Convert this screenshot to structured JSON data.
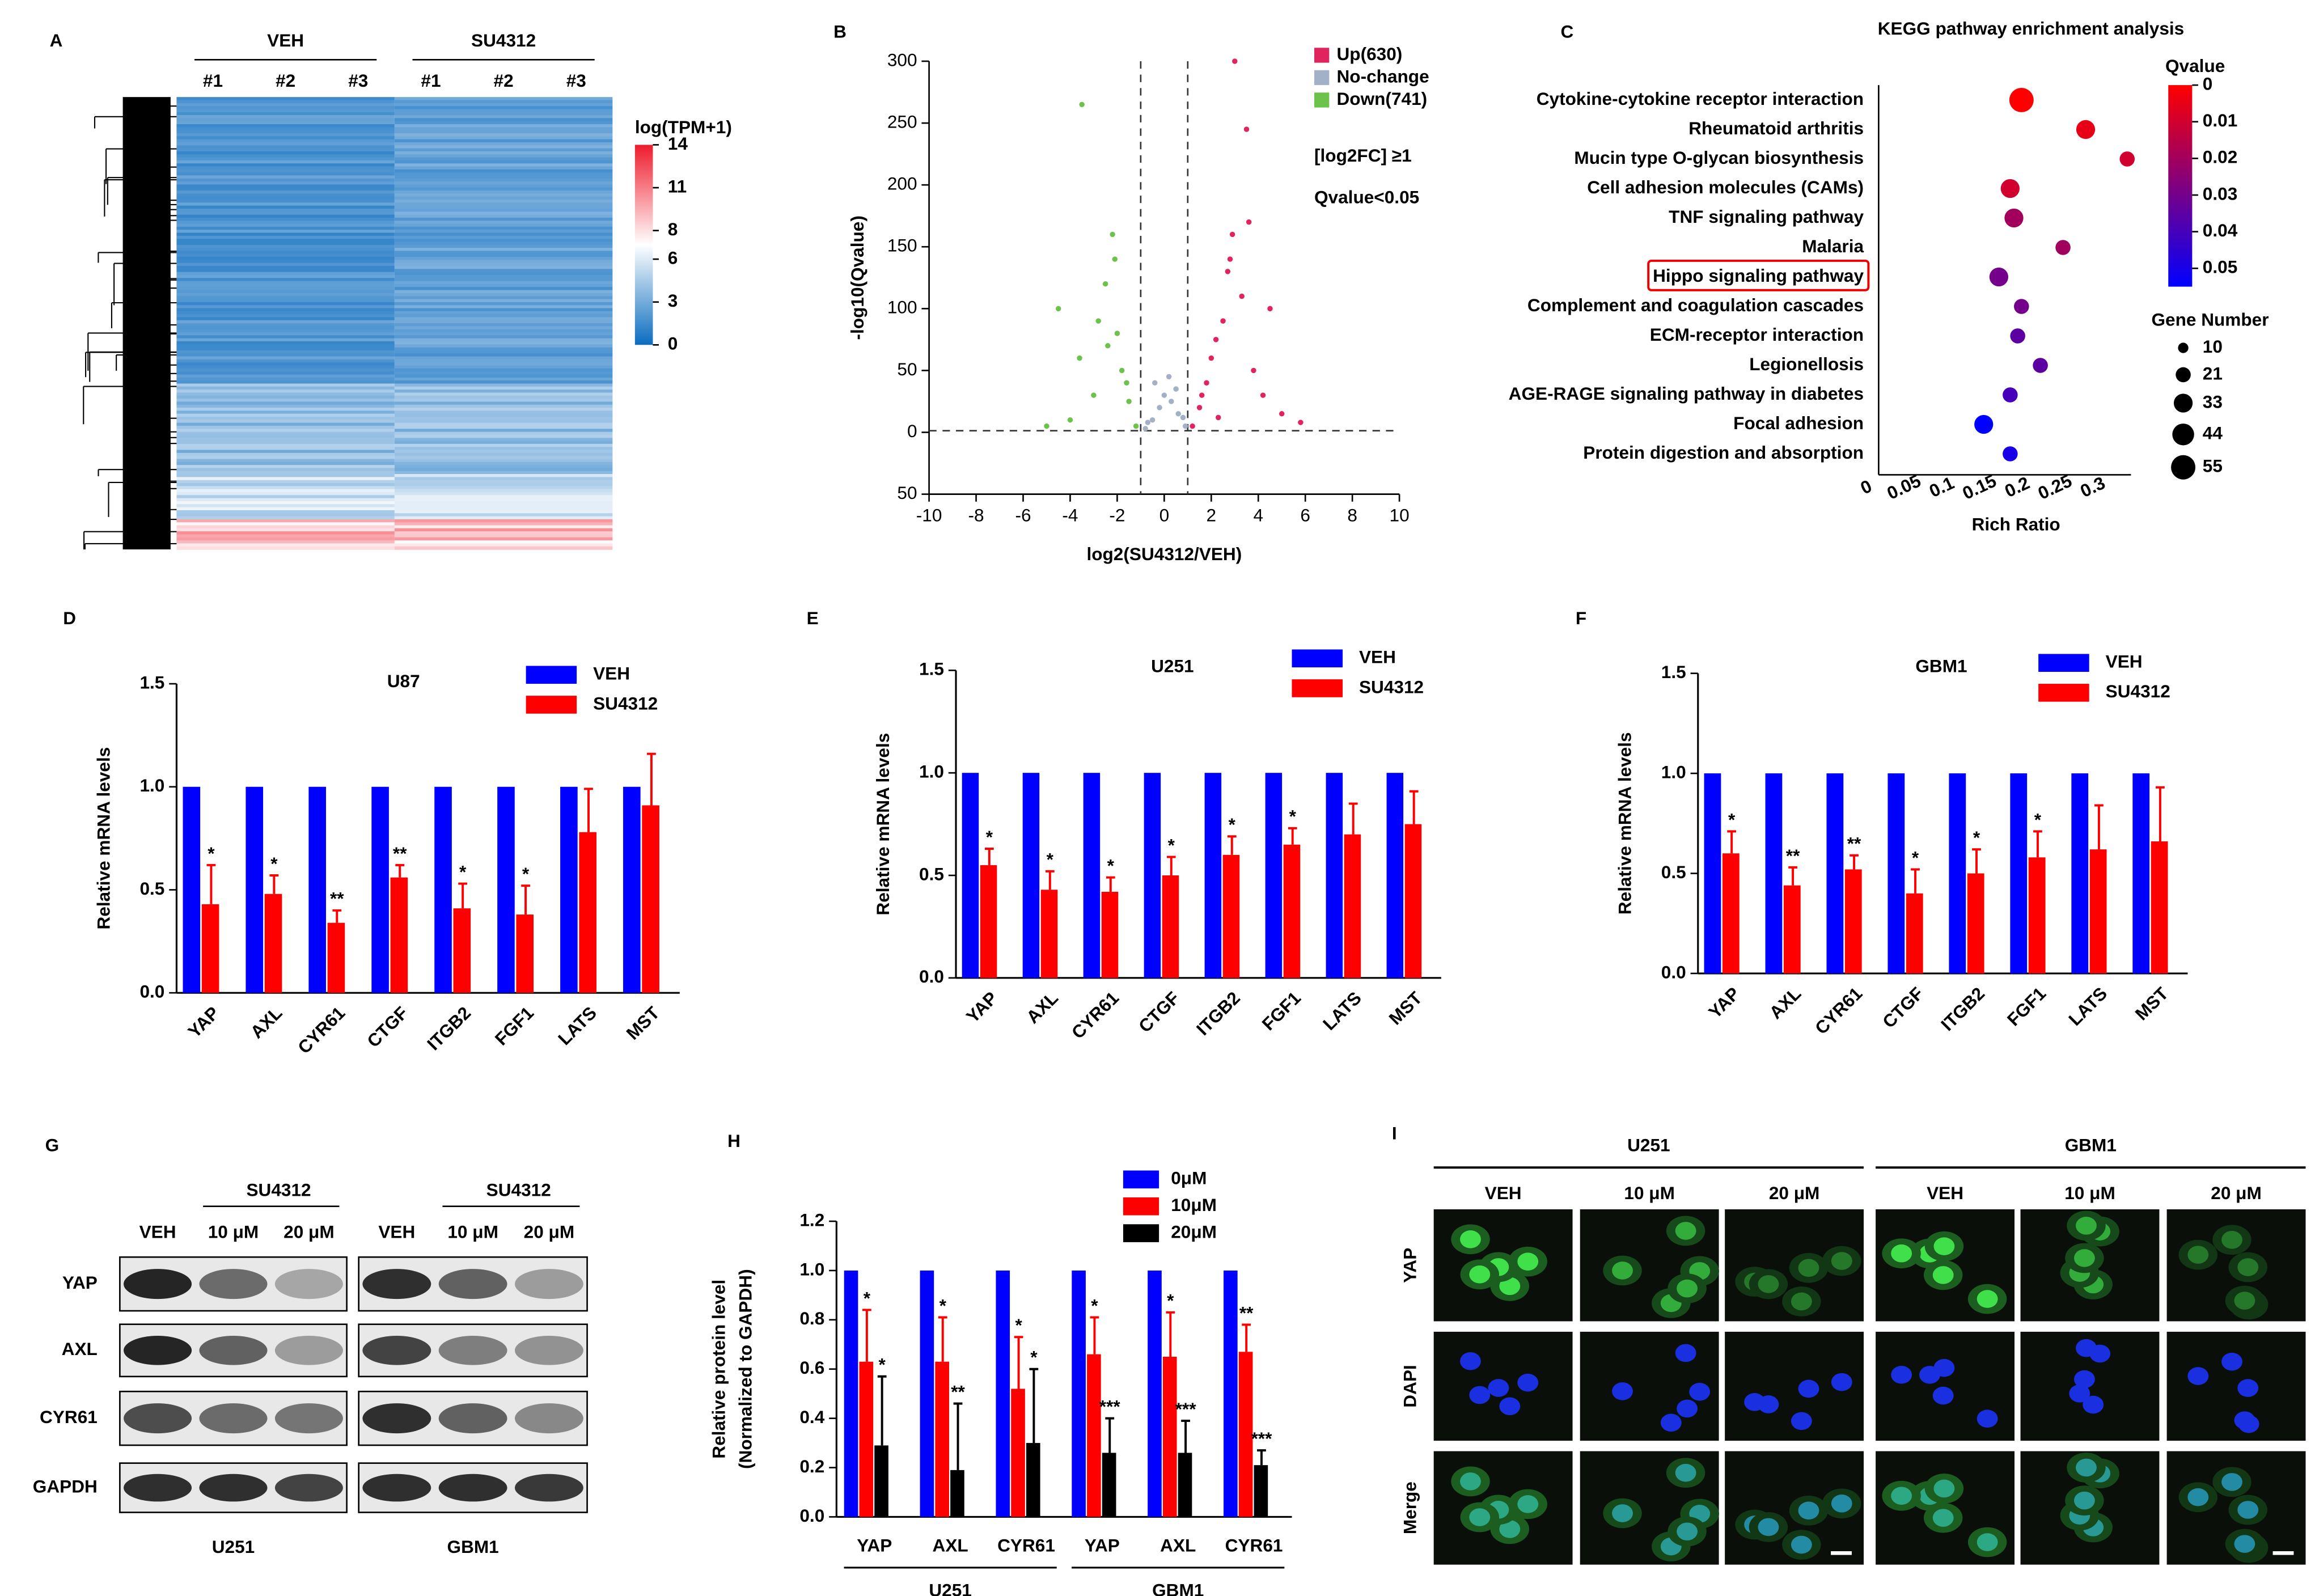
{
  "chart_data": [
    {
      "type": "heatmap",
      "panel": "A",
      "groups": [
        "VEH",
        "SU4312"
      ],
      "columns": [
        "#1",
        "#2",
        "#3",
        "#1",
        "#2",
        "#3"
      ],
      "colorbar_title": "log(TPM+1)",
      "clim": [
        0,
        14
      ],
      "colorbar_ticks": [
        0,
        3,
        6,
        8,
        11,
        14
      ],
      "colors": [
        "#0b6cbf",
        "#ffffff",
        "#ee1c2c"
      ]
    },
    {
      "type": "scatter",
      "panel": "B",
      "xlabel": "log2(SU4312/VEH)",
      "ylabel": "-log10(Qvalue)",
      "xlim": [
        -10,
        10
      ],
      "xticks": [
        -10,
        -8,
        -6,
        -4,
        -2,
        0,
        2,
        4,
        6,
        8,
        10
      ],
      "ylim": [
        -50,
        300
      ],
      "yticks": [
        {
          "value": -50,
          "label": "50"
        },
        0,
        50,
        100,
        150,
        200,
        250,
        300
      ],
      "x_cutoffs": [
        -1,
        1
      ],
      "y_cutoff": 1.3,
      "annotations": [
        "[log2FC] ≥1",
        "Qvalue<0.05"
      ],
      "series": [
        {
          "name": "Up(630)",
          "color": "#e0245e",
          "x": [
            1.2,
            1.5,
            1.8,
            2.0,
            2.3,
            2.5,
            2.8,
            3.0,
            3.3,
            3.5,
            3.8,
            4.2,
            4.5,
            5.0,
            5.8,
            2.9,
            3.6,
            1.6,
            2.2,
            2.7
          ],
          "values": [
            5,
            20,
            40,
            60,
            12,
            90,
            140,
            300,
            110,
            245,
            50,
            30,
            100,
            15,
            8,
            160,
            170,
            30,
            75,
            130
          ]
        },
        {
          "name": "No-change",
          "color": "#a3b1c6",
          "x": [
            -0.8,
            -0.5,
            -0.2,
            0,
            0.3,
            0.6,
            0.9,
            -0.4,
            0.2,
            0.5,
            -0.7,
            0.8
          ],
          "values": [
            3,
            10,
            20,
            30,
            25,
            15,
            5,
            40,
            45,
            35,
            8,
            12
          ]
        },
        {
          "name": "Down(741)",
          "color": "#6cc24a",
          "x": [
            -1.2,
            -1.5,
            -1.8,
            -2.0,
            -2.2,
            -2.5,
            -2.8,
            -3.0,
            -3.5,
            -3.6,
            -4.0,
            -4.5,
            -5.0,
            -2.1,
            -1.6,
            -2.4
          ],
          "values": [
            5,
            25,
            50,
            80,
            160,
            120,
            90,
            30,
            265,
            60,
            10,
            100,
            5,
            140,
            40,
            70
          ]
        }
      ]
    },
    {
      "type": "bubble",
      "panel": "C",
      "title": "KEGG pathway enrichment analysis",
      "xlabel": "Rich Ratio",
      "categories": [
        "Cytokine-cytokine receptor interaction",
        "Rheumatoid arthritis",
        "Mucin type O-glycan biosynthesis",
        "Cell adhesion molecules (CAMs)",
        "TNF signaling pathway",
        "Malaria",
        "Hippo signaling pathway",
        "Complement and coagulation cascades",
        "ECM-receptor interaction",
        "Legionellosis",
        "AGE-RAGE signaling pathway in diabetes",
        "Focal adhesion",
        "Protein digestion and absorption"
      ],
      "x": [
        0.205,
        0.29,
        0.345,
        0.19,
        0.195,
        0.26,
        0.175,
        0.205,
        0.2,
        0.23,
        0.19,
        0.155,
        0.19
      ],
      "color_values": [
        0,
        0.005,
        0.01,
        0.01,
        0.02,
        0.02,
        0.03,
        0.03,
        0.035,
        0.035,
        0.04,
        0.055,
        0.05
      ],
      "sizes": [
        55,
        33,
        21,
        33,
        33,
        21,
        33,
        21,
        21,
        21,
        21,
        33,
        21
      ],
      "xlim": [
        0,
        0.35
      ],
      "xticks": [
        0,
        0.05,
        0.1,
        0.15,
        0.2,
        0.25,
        0.3
      ],
      "colorbar_title": "Qvalue",
      "clim": [
        0,
        0.055
      ],
      "colorbar_ticks": [
        0,
        0.01,
        0.02,
        0.03,
        0.04,
        0.05
      ],
      "colors": [
        "#ff0000",
        "#0000ff"
      ],
      "size_title": "Gene Number",
      "size_ticks": [
        10,
        21,
        33,
        44,
        55
      ],
      "highlight_index": 6
    },
    {
      "type": "bar",
      "panel": "D",
      "title": "U87",
      "ylabel": "Relative mRNA levels",
      "categories": [
        "YAP",
        "AXL",
        "CYR61",
        "CTGF",
        "ITGB2",
        "FGF1",
        "LATS",
        "MST"
      ],
      "ylim": [
        0,
        1.5
      ],
      "yticks": [
        {
          "value": 0,
          "label": "0.0"
        },
        0.5,
        {
          "value": 1,
          "label": "1.0"
        },
        1.5
      ],
      "series": [
        {
          "name": "VEH",
          "color": "#0000ff",
          "values": [
            1,
            1,
            1,
            1,
            1,
            1,
            1,
            1
          ]
        },
        {
          "name": "SU4312",
          "color": "#ff0000",
          "values": [
            0.43,
            0.48,
            0.34,
            0.56,
            0.41,
            0.38,
            0.78,
            0.91
          ],
          "errors": [
            0.19,
            0.09,
            0.06,
            0.06,
            0.12,
            0.14,
            0.21,
            0.25
          ],
          "significance": [
            "*",
            "*",
            "**",
            "**",
            "*",
            "*",
            null,
            null
          ]
        }
      ]
    },
    {
      "type": "bar",
      "panel": "E",
      "title": "U251",
      "ylabel": "Relative mRNA levels",
      "categories": [
        "YAP",
        "AXL",
        "CYR61",
        "CTGF",
        "ITGB2",
        "FGF1",
        "LATS",
        "MST"
      ],
      "ylim": [
        0,
        1.5
      ],
      "yticks": [
        {
          "value": 0,
          "label": "0.0"
        },
        0.5,
        {
          "value": 1,
          "label": "1.0"
        },
        1.5
      ],
      "series": [
        {
          "name": "VEH",
          "color": "#0000ff",
          "values": [
            1,
            1,
            1,
            1,
            1,
            1,
            1,
            1
          ]
        },
        {
          "name": "SU4312",
          "color": "#ff0000",
          "values": [
            0.55,
            0.43,
            0.42,
            0.5,
            0.6,
            0.65,
            0.7,
            0.75
          ],
          "errors": [
            0.08,
            0.09,
            0.07,
            0.09,
            0.09,
            0.08,
            0.15,
            0.16
          ],
          "significance": [
            "*",
            "*",
            "*",
            "*",
            "*",
            "*",
            null,
            null
          ]
        }
      ]
    },
    {
      "type": "bar",
      "panel": "F",
      "title": "GBM1",
      "ylabel": "Relative mRNA levels",
      "categories": [
        "YAP",
        "AXL",
        "CYR61",
        "CTGF",
        "ITGB2",
        "FGF1",
        "LATS",
        "MST"
      ],
      "ylim": [
        0,
        1.5
      ],
      "yticks": [
        {
          "value": 0,
          "label": "0.0"
        },
        0.5,
        {
          "value": 1,
          "label": "1.0"
        },
        1.5
      ],
      "series": [
        {
          "name": "VEH",
          "color": "#0000ff",
          "values": [
            1,
            1,
            1,
            1,
            1,
            1,
            1,
            1
          ]
        },
        {
          "name": "SU4312",
          "color": "#ff0000",
          "values": [
            0.6,
            0.44,
            0.52,
            0.4,
            0.5,
            0.58,
            0.62,
            0.66
          ],
          "errors": [
            0.11,
            0.09,
            0.07,
            0.12,
            0.12,
            0.13,
            0.22,
            0.27
          ],
          "significance": [
            "*",
            "**",
            "**",
            "*",
            "*",
            "*",
            null,
            null
          ]
        }
      ]
    },
    {
      "type": "blot",
      "panel": "G",
      "treatment": "SU4312",
      "lanes": [
        "VEH",
        "10 μM",
        "20 μM"
      ],
      "cell_lines": [
        "U251",
        "GBM1"
      ],
      "proteins": [
        "YAP",
        "AXL",
        "CYR61",
        "GAPDH"
      ]
    },
    {
      "type": "bar",
      "panel": "H",
      "ylabel": [
        "Relative protein level",
        "(Normalized to GAPDH)"
      ],
      "categories": [
        "YAP",
        "AXL",
        "CYR61",
        "YAP",
        "AXL",
        "CYR61"
      ],
      "groups": [
        "U251",
        "GBM1"
      ],
      "ylim": [
        0,
        1.2
      ],
      "yticks": [
        {
          "value": 0,
          "label": "0.0"
        },
        0.2,
        0.4,
        0.6,
        0.8,
        {
          "value": 1,
          "label": "1.0"
        },
        1.2
      ],
      "series": [
        {
          "name": "0μM",
          "color": "#0000ff",
          "values": [
            1,
            1,
            1,
            1,
            1,
            1
          ]
        },
        {
          "name": "10μM",
          "color": "#ff0000",
          "values": [
            0.63,
            0.63,
            0.52,
            0.66,
            0.65,
            0.67
          ],
          "errors": [
            0.21,
            0.18,
            0.21,
            0.15,
            0.18,
            0.11
          ],
          "significance": [
            "*",
            "*",
            "*",
            "*",
            "*",
            "**"
          ]
        },
        {
          "name": "20μM",
          "color": "#000000",
          "values": [
            0.29,
            0.19,
            0.3,
            0.26,
            0.26,
            0.21
          ],
          "errors": [
            0.28,
            0.27,
            0.3,
            0.14,
            0.13,
            0.06
          ],
          "significance": [
            "*",
            "**",
            "*",
            "***",
            "***",
            "***"
          ]
        }
      ]
    },
    {
      "type": "image-grid",
      "panel": "I",
      "cell_lines": [
        "U251",
        "GBM1"
      ],
      "conditions": [
        "VEH",
        "10 μM",
        "20 μM"
      ],
      "channels": [
        "YAP",
        "DAPI",
        "Merge"
      ]
    }
  ]
}
